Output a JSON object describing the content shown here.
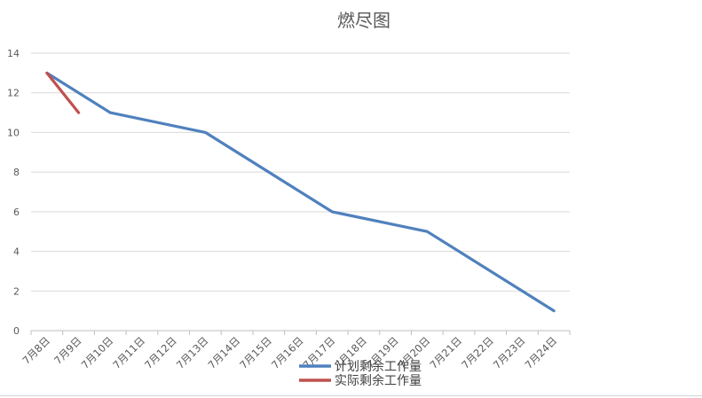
{
  "chart_data": {
    "type": "line",
    "title": "燃尽图",
    "categories": [
      "7月8日",
      "7月9日",
      "7月10日",
      "7月11日",
      "7月12日",
      "7月13日",
      "7月14日",
      "7月15日",
      "7月16日",
      "7月17日",
      "7月18日",
      "7月19日",
      "7月20日",
      "7月21日",
      "7月22日",
      "7月23日",
      "7月24日"
    ],
    "ylim": [
      0,
      14
    ],
    "yticks": [
      "0",
      "2",
      "4",
      "6",
      "8",
      "10",
      "12",
      "14"
    ],
    "grid": true,
    "legend_position": "bottom",
    "series": [
      {
        "name": "计划剩余工作量",
        "color": "#4f81bd",
        "points": [
          {
            "x": "7月8日",
            "y": 13
          },
          {
            "x": "7月10日",
            "y": 11
          },
          {
            "x": "7月13日",
            "y": 10
          },
          {
            "x": "7月17日",
            "y": 6
          },
          {
            "x": "7月20日",
            "y": 5
          },
          {
            "x": "7月24日",
            "y": 1
          }
        ]
      },
      {
        "name": "实际剩余工作量",
        "color": "#c0504d",
        "points": [
          {
            "x": "7月8日",
            "y": 13
          },
          {
            "x": "7月9日",
            "y": 11
          }
        ]
      }
    ]
  }
}
